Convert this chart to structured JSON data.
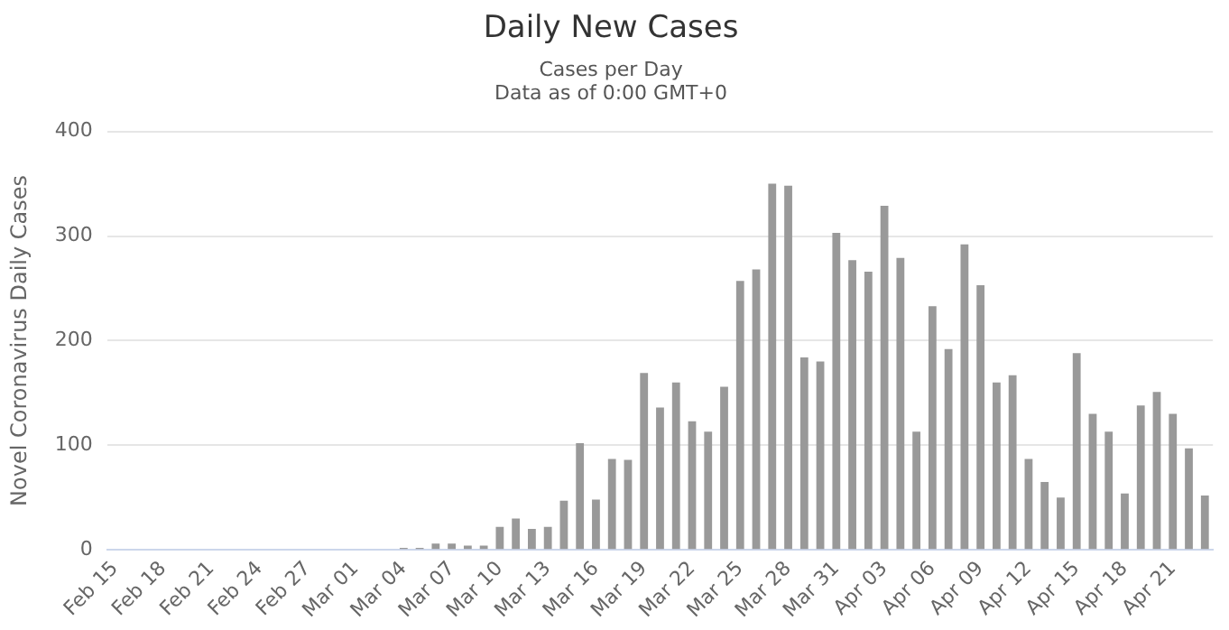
{
  "chart_data": {
    "type": "bar",
    "title": "Daily New Cases",
    "subtitle": "Cases per Day\nData as of 0:00 GMT+0",
    "ylabel": "Novel Coronavirus Daily Cases",
    "categories": [
      "Feb 15",
      null,
      null,
      "Feb 18",
      null,
      null,
      "Feb 21",
      null,
      null,
      "Feb 24",
      null,
      null,
      "Feb 27",
      null,
      null,
      "Mar 01",
      null,
      null,
      "Mar 04",
      null,
      null,
      "Mar 07",
      null,
      null,
      "Mar 10",
      null,
      null,
      "Mar 13",
      null,
      null,
      "Mar 16",
      null,
      null,
      "Mar 19",
      null,
      null,
      "Mar 22",
      null,
      null,
      "Mar 25",
      null,
      null,
      "Mar 28",
      null,
      null,
      "Mar 31",
      null,
      null,
      "Apr 03",
      null,
      null,
      "Apr 06",
      null,
      null,
      "Apr 09",
      null,
      null,
      "Apr 12",
      null,
      null,
      "Apr 15",
      null,
      null,
      "Apr 18",
      null,
      null,
      "Apr 21",
      null,
      null
    ],
    "values": [
      0,
      0,
      0,
      0,
      0,
      0,
      0,
      0,
      0,
      0,
      0,
      0,
      0,
      0,
      0,
      0,
      0,
      0,
      2,
      2,
      6,
      6,
      4,
      4,
      22,
      30,
      20,
      22,
      47,
      102,
      48,
      87,
      86,
      169,
      136,
      160,
      123,
      113,
      156,
      257,
      268,
      350,
      348,
      184,
      180,
      303,
      277,
      266,
      329,
      279,
      113,
      233,
      192,
      292,
      253,
      160,
      167,
      87,
      65,
      50,
      188,
      130,
      113,
      54,
      138,
      151,
      130,
      97,
      52
    ],
    "color": "#999999",
    "ylim": [
      0,
      400
    ],
    "yticks": [
      0,
      100,
      200,
      300,
      400
    ],
    "grid": "y"
  }
}
